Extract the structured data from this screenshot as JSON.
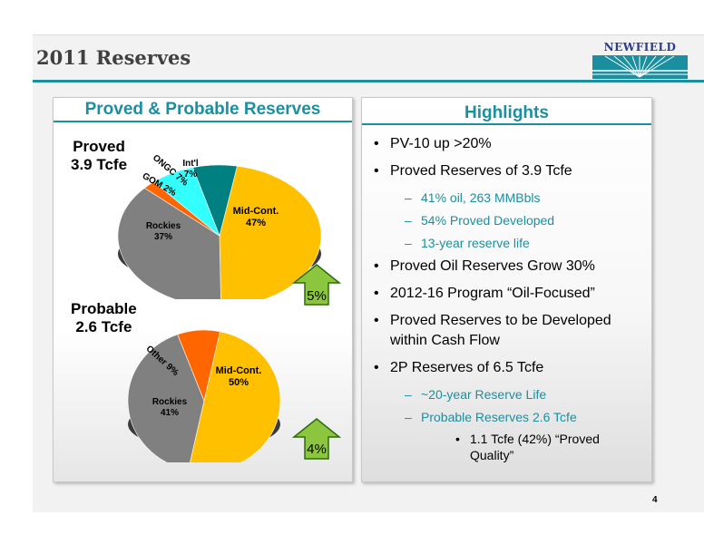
{
  "slide": {
    "title": "2011 Reserves",
    "page_number": "4",
    "logo_text": "NEWFIELD",
    "colors": {
      "accent": "#1b8fa0",
      "mid_cont": "#ffc000",
      "rockies": "#808080",
      "gom": "#ff6600",
      "ongc": "#33ffff",
      "intl": "#008080",
      "arrow_green": "#8cc63f"
    }
  },
  "left_panel": {
    "heading": "Proved & Probable Reserves",
    "proved": {
      "label_line1": "Proved",
      "label_line2": "3.9 Tcfe",
      "change_badge": "5%",
      "slice_labels": {
        "mid_cont": "Mid-Cont.",
        "mid_cont_pct": "47%",
        "rockies": "Rockies",
        "rockies_pct": "37%",
        "gom": "GOM 2%",
        "ongc": "ONGC 7%",
        "intl": "Int'l",
        "intl_pct": "7%"
      }
    },
    "probable": {
      "label_line1": "Probable",
      "label_line2": "2.6 Tcfe",
      "change_badge": "4%",
      "slice_labels": {
        "mid_cont": "Mid-Cont.",
        "mid_cont_pct": "50%",
        "rockies": "Rockies",
        "rockies_pct": "41%",
        "other": "Other 9%"
      }
    }
  },
  "chart_data": [
    {
      "type": "pie",
      "title": "Proved 3.9 Tcfe",
      "categories": [
        "Mid-Cont.",
        "Rockies",
        "GOM",
        "ONGC",
        "Int'l"
      ],
      "values": [
        47,
        37,
        2,
        7,
        7
      ]
    },
    {
      "type": "pie",
      "title": "Probable 2.6 Tcfe",
      "categories": [
        "Mid-Cont.",
        "Rockies",
        "Other"
      ],
      "values": [
        50,
        41,
        9
      ]
    }
  ],
  "right_panel": {
    "heading": "Highlights",
    "b1": "PV-10 up >20%",
    "b2": "Proved Reserves of 3.9 Tcfe",
    "b2a": "41% oil, 263 MMBbls",
    "b2b": "54% Proved Developed",
    "b2c": "13-year reserve life",
    "b3": "Proved Oil Reserves Grow 30%",
    "b4": "2012-16 Program “Oil-Focused”",
    "b5": "Proved Reserves to be Developed within Cash Flow",
    "b6": "2P Reserves of 6.5 Tcfe",
    "b6a": "~20-year Reserve Life",
    "b6b": "Probable Reserves 2.6 Tcfe",
    "b6b1": "1.1 Tcfe (42%) “Proved Quality”"
  }
}
